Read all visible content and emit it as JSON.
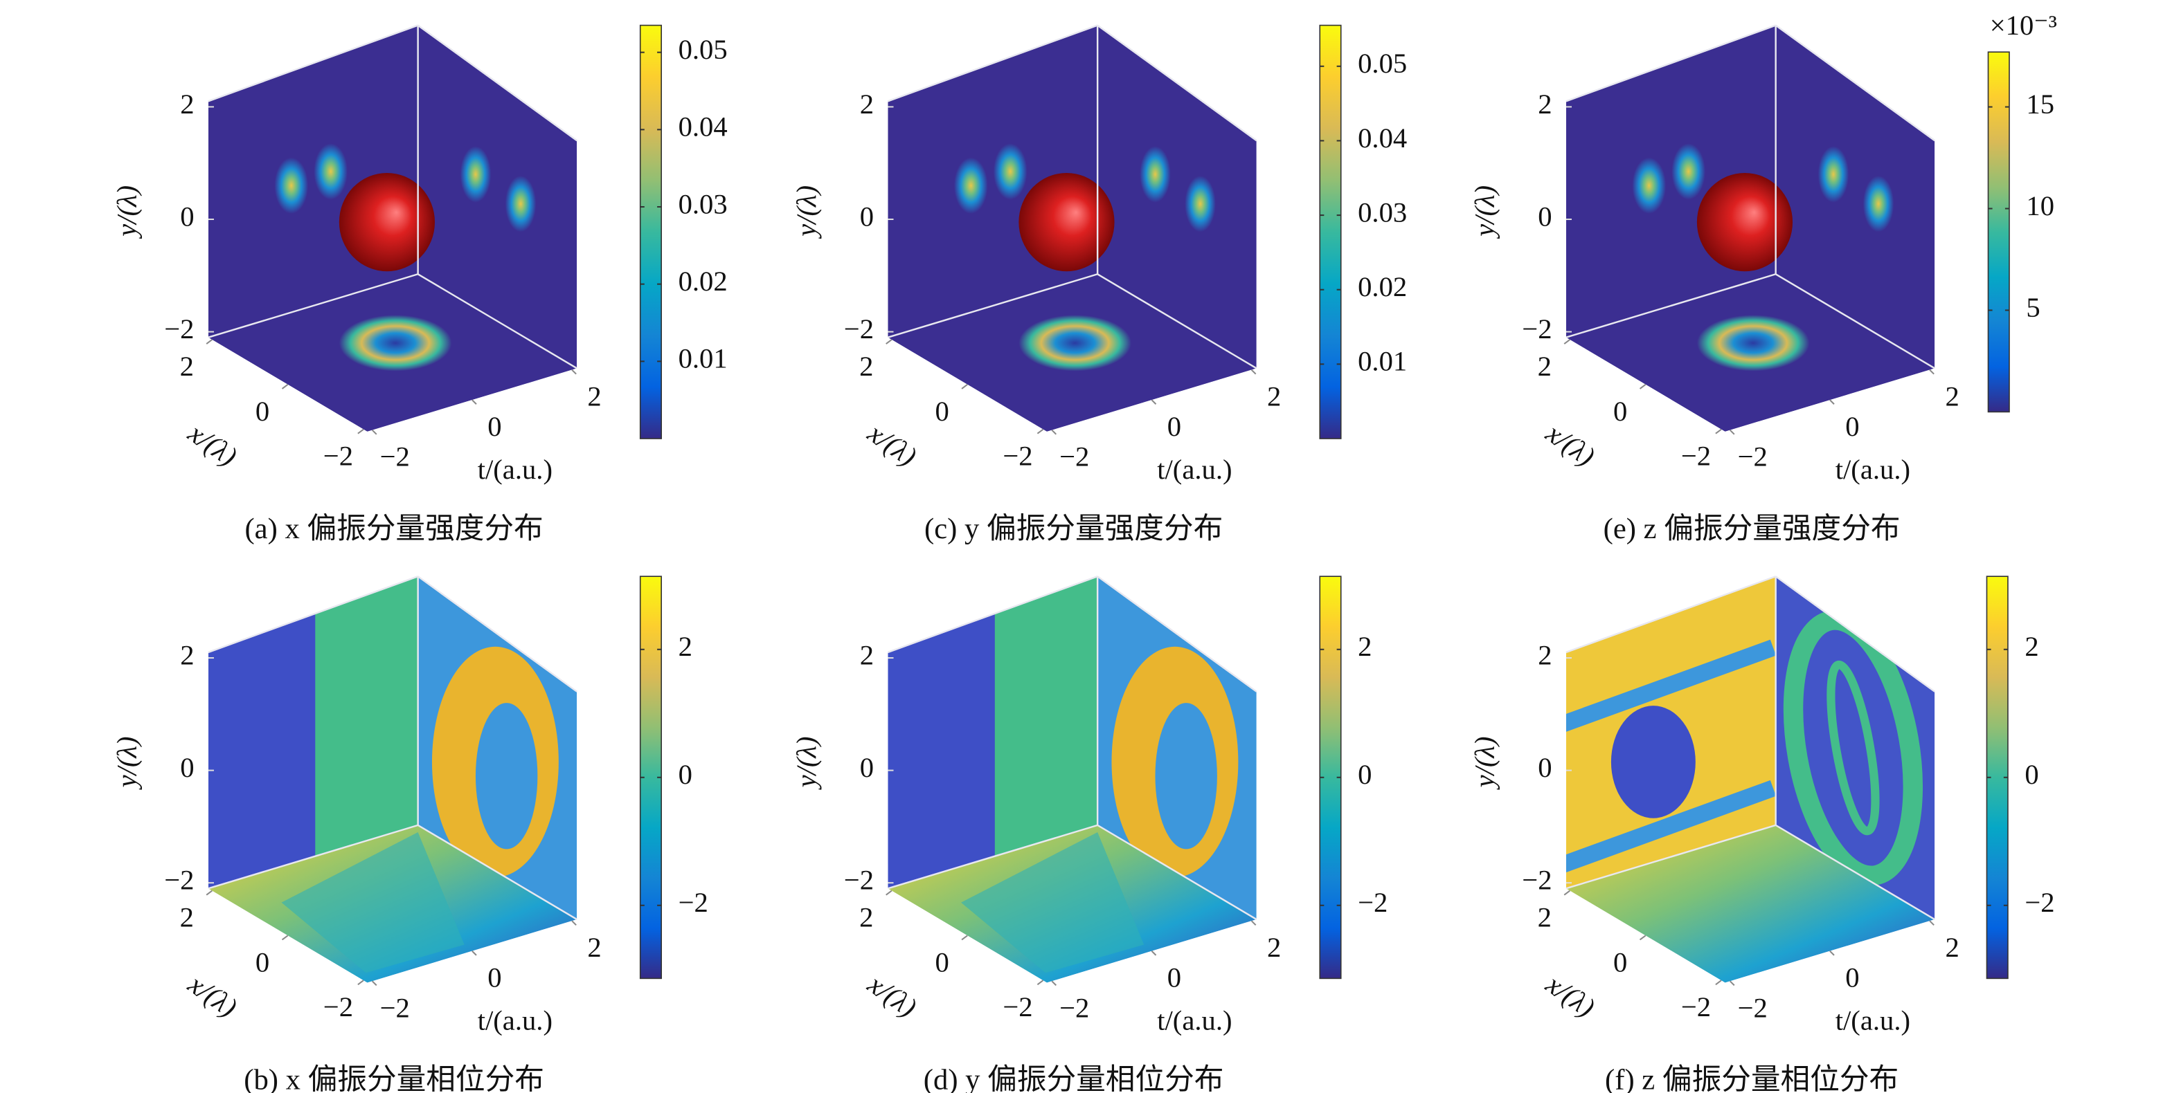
{
  "chart_data": [
    {
      "type": "volume",
      "caption": "(a) x 偏振分量强度分布",
      "xlabel": "x/(λ)",
      "ylabel": "y/(λ)",
      "zlabel": "t/(a.u.)",
      "xlim": [
        -2.1,
        2.1
      ],
      "xticks": [
        {
          "value": -2,
          "label": "−2"
        },
        0,
        2
      ],
      "ylim": [
        -2.1,
        2.1
      ],
      "yticks": [
        {
          "value": -2,
          "label": "−2"
        },
        0,
        2
      ],
      "zlim": [
        -2.1,
        2.1
      ],
      "zticks": [
        {
          "value": -2,
          "label": "−2"
        },
        0,
        2
      ],
      "clim": [
        0,
        0.0535
      ],
      "cticks": [
        0.01,
        0.02,
        0.03,
        0.04,
        0.05
      ],
      "colormap": "parula"
    },
    {
      "type": "volume",
      "caption": "(b) x 偏振分量相位分布",
      "xlabel": "x/(λ)",
      "ylabel": "y/(λ)",
      "zlabel": "t/(a.u.)",
      "xlim": [
        -2.1,
        2.1
      ],
      "xticks": [
        {
          "value": -2,
          "label": "−2"
        },
        0,
        2
      ],
      "ylim": [
        -2.1,
        2.1
      ],
      "yticks": [
        {
          "value": -2,
          "label": "−2"
        },
        0,
        2
      ],
      "zlim": [
        -2.1,
        2.1
      ],
      "zticks": [
        {
          "value": -2,
          "label": "−2"
        },
        0,
        2
      ],
      "clim": [
        -3.1416,
        3.1416
      ],
      "cticks": [
        {
          "value": -2,
          "label": "−2"
        },
        0,
        2
      ],
      "colormap": "parula"
    },
    {
      "type": "volume",
      "caption": "(c) y 偏振分量强度分布",
      "xlabel": "x/(λ)",
      "ylabel": "y/(λ)",
      "zlabel": "t/(a.u.)",
      "xlim": [
        -2.1,
        2.1
      ],
      "xticks": [
        {
          "value": -2,
          "label": "−2"
        },
        0,
        2
      ],
      "ylim": [
        -2.1,
        2.1
      ],
      "yticks": [
        {
          "value": -2,
          "label": "−2"
        },
        0,
        2
      ],
      "zlim": [
        -2.1,
        2.1
      ],
      "zticks": [
        {
          "value": -2,
          "label": "−2"
        },
        0,
        2
      ],
      "clim": [
        0,
        0.0555
      ],
      "cticks": [
        0.01,
        0.02,
        0.03,
        0.04,
        0.05
      ],
      "colormap": "parula"
    },
    {
      "type": "volume",
      "caption": "(d) y 偏振分量相位分布",
      "xlabel": "x/(λ)",
      "ylabel": "y/(λ)",
      "zlabel": "t/(a.u.)",
      "xlim": [
        -2.1,
        2.1
      ],
      "xticks": [
        {
          "value": -2,
          "label": "−2"
        },
        0,
        2
      ],
      "ylim": [
        -2.1,
        2.1
      ],
      "yticks": [
        {
          "value": -2,
          "label": "−2"
        },
        0,
        2
      ],
      "zlim": [
        -2.1,
        2.1
      ],
      "zticks": [
        {
          "value": -2,
          "label": "−2"
        },
        0,
        2
      ],
      "clim": [
        -3.1416,
        3.1416
      ],
      "cticks": [
        {
          "value": -2,
          "label": "−2"
        },
        0,
        2
      ],
      "colormap": "parula"
    },
    {
      "type": "volume",
      "caption": "(e) z 偏振分量强度分布",
      "xlabel": "x/(λ)",
      "ylabel": "y/(λ)",
      "zlabel": "t/(a.u.)",
      "xlim": [
        -2.1,
        2.1
      ],
      "xticks": [
        {
          "value": -2,
          "label": "−2"
        },
        0,
        2
      ],
      "ylim": [
        -2.1,
        2.1
      ],
      "yticks": [
        {
          "value": -2,
          "label": "−2"
        },
        0,
        2
      ],
      "zlim": [
        -2.1,
        2.1
      ],
      "zticks": [
        {
          "value": -2,
          "label": "−2"
        },
        0,
        2
      ],
      "clim": [
        0,
        17.7
      ],
      "cticks": [
        5,
        10,
        15
      ],
      "colorbar_exponent": "×10⁻³",
      "colormap": "parula"
    },
    {
      "type": "volume",
      "caption": "(f) z 偏振分量相位分布",
      "xlabel": "x/(λ)",
      "ylabel": "y/(λ)",
      "zlabel": "t/(a.u.)",
      "xlim": [
        -2.1,
        2.1
      ],
      "xticks": [
        {
          "value": -2,
          "label": "−2"
        },
        0,
        2
      ],
      "ylim": [
        -2.1,
        2.1
      ],
      "yticks": [
        {
          "value": -2,
          "label": "−2"
        },
        0,
        2
      ],
      "zlim": [
        -2.1,
        2.1
      ],
      "zticks": [
        {
          "value": -2,
          "label": "−2"
        },
        0,
        2
      ],
      "clim": [
        -3.1416,
        3.1416
      ],
      "cticks": [
        {
          "value": -2,
          "label": "−2"
        },
        0,
        2
      ],
      "colormap": "parula"
    }
  ]
}
